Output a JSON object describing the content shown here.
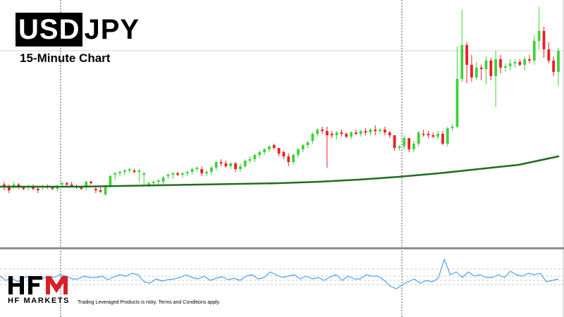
{
  "title": {
    "highlight": "USD",
    "rest": "JPY",
    "subtitle": "15-Minute Chart"
  },
  "brand": {
    "logo_letters": "HFM",
    "name": "HF MARKETS",
    "disclaimer": "Trading Leveraged Products is risky. Terms and Conditions apply."
  },
  "colors": {
    "up": "#3fd23a",
    "down": "#ee1c25",
    "moving_average": "#1e6e1e",
    "oscillator": "#4aa3f0",
    "logo_red": "#d61f26"
  },
  "chart_data": {
    "type": "candlestick",
    "symbol": "USDJPY",
    "timeframe": "15-Minute",
    "y_range": [
      0,
      450
    ],
    "axis_labels": "none shown",
    "grid": "none, with two vertical dashed session separators",
    "candles_ohlc": [
      [
        262,
        258,
        270,
        266
      ],
      [
        266,
        262,
        274,
        270
      ],
      [
        264,
        258,
        268,
        262
      ],
      [
        262,
        260,
        268,
        266
      ],
      [
        266,
        264,
        270,
        268
      ],
      [
        266,
        262,
        270,
        264
      ],
      [
        264,
        262,
        270,
        268
      ],
      [
        268,
        264,
        274,
        270
      ],
      [
        266,
        262,
        270,
        264
      ],
      [
        264,
        262,
        268,
        266
      ],
      [
        266,
        264,
        270,
        268
      ],
      [
        268,
        262,
        272,
        264
      ],
      [
        262,
        258,
        266,
        260
      ],
      [
        260,
        258,
        264,
        262
      ],
      [
        262,
        258,
        266,
        264
      ],
      [
        264,
        262,
        268,
        266
      ],
      [
        266,
        264,
        270,
        268
      ],
      [
        266,
        256,
        270,
        258
      ],
      [
        258,
        256,
        262,
        260
      ],
      [
        268,
        264,
        274,
        270
      ],
      [
        270,
        266,
        274,
        272
      ],
      [
        276,
        262,
        278,
        264
      ],
      [
        264,
        248,
        266,
        250
      ],
      [
        248,
        244,
        256,
        246
      ],
      [
        246,
        242,
        250,
        244
      ],
      [
        244,
        240,
        248,
        242
      ],
      [
        242,
        238,
        246,
        240
      ],
      [
        242,
        240,
        246,
        244
      ],
      [
        244,
        240,
        258,
        242
      ],
      [
        248,
        244,
        262,
        246
      ],
      [
        262,
        258,
        266,
        260
      ],
      [
        260,
        256,
        264,
        258
      ],
      [
        258,
        254,
        262,
        256
      ],
      [
        258,
        250,
        262,
        252
      ],
      [
        250,
        246,
        254,
        248
      ],
      [
        248,
        244,
        254,
        246
      ],
      [
        246,
        244,
        250,
        248
      ],
      [
        248,
        244,
        252,
        246
      ],
      [
        246,
        242,
        250,
        244
      ],
      [
        244,
        238,
        248,
        240
      ],
      [
        240,
        236,
        244,
        238
      ],
      [
        240,
        236,
        250,
        246
      ],
      [
        246,
        242,
        250,
        244
      ],
      [
        244,
        236,
        248,
        238
      ],
      [
        238,
        228,
        242,
        230
      ],
      [
        230,
        226,
        236,
        232
      ],
      [
        232,
        228,
        238,
        236
      ],
      [
        236,
        230,
        240,
        232
      ],
      [
        232,
        230,
        244,
        240
      ],
      [
        240,
        232,
        244,
        236
      ],
      [
        236,
        226,
        238,
        228
      ],
      [
        228,
        222,
        232,
        226
      ],
      [
        226,
        218,
        230,
        220
      ],
      [
        220,
        214,
        224,
        216
      ],
      [
        216,
        210,
        220,
        212
      ],
      [
        212,
        206,
        216,
        208
      ],
      [
        206,
        204,
        212,
        210
      ],
      [
        210,
        210,
        222,
        218
      ],
      [
        216,
        214,
        226,
        222
      ],
      [
        222,
        218,
        236,
        230
      ],
      [
        230,
        218,
        234,
        220
      ],
      [
        220,
        210,
        224,
        212
      ],
      [
        212,
        204,
        216,
        206
      ],
      [
        206,
        200,
        210,
        202
      ],
      [
        200,
        188,
        204,
        190
      ],
      [
        190,
        182,
        194,
        184
      ],
      [
        184,
        180,
        190,
        186
      ],
      [
        186,
        180,
        238,
        192
      ],
      [
        190,
        186,
        196,
        192
      ],
      [
        192,
        186,
        198,
        188
      ],
      [
        188,
        184,
        194,
        190
      ],
      [
        190,
        188,
        196,
        194
      ],
      [
        194,
        186,
        198,
        188
      ],
      [
        188,
        184,
        192,
        190
      ],
      [
        190,
        184,
        194,
        186
      ],
      [
        186,
        182,
        192,
        188
      ],
      [
        188,
        182,
        192,
        184
      ],
      [
        184,
        178,
        192,
        186
      ],
      [
        186,
        182,
        190,
        184
      ],
      [
        184,
        180,
        192,
        188
      ],
      [
        188,
        186,
        196,
        192
      ],
      [
        192,
        192,
        214,
        210
      ],
      [
        210,
        206,
        214,
        208
      ],
      [
        208,
        192,
        212,
        196
      ],
      [
        196,
        196,
        216,
        212
      ],
      [
        212,
        200,
        216,
        204
      ],
      [
        204,
        186,
        208,
        188
      ],
      [
        190,
        184,
        194,
        190
      ],
      [
        190,
        186,
        196,
        192
      ],
      [
        192,
        188,
        196,
        194
      ],
      [
        194,
        186,
        198,
        190
      ],
      [
        190,
        186,
        206,
        204
      ],
      [
        204,
        180,
        208,
        182
      ],
      [
        182,
        176,
        186,
        180
      ],
      [
        180,
        66,
        182,
        112
      ],
      [
        112,
        14,
        116,
        64
      ],
      [
        64,
        60,
        118,
        92
      ],
      [
        92,
        78,
        116,
        110
      ],
      [
        110,
        88,
        114,
        96
      ],
      [
        96,
        92,
        114,
        98
      ],
      [
        98,
        80,
        120,
        86
      ],
      [
        86,
        82,
        114,
        108
      ],
      [
        108,
        72,
        152,
        84
      ],
      [
        84,
        78,
        104,
        96
      ],
      [
        96,
        90,
        102,
        94
      ],
      [
        94,
        84,
        100,
        90
      ],
      [
        90,
        84,
        96,
        88
      ],
      [
        88,
        84,
        94,
        92
      ],
      [
        92,
        80,
        100,
        84
      ],
      [
        84,
        78,
        90,
        86
      ],
      [
        86,
        50,
        92,
        58
      ],
      [
        58,
        10,
        70,
        44
      ],
      [
        44,
        38,
        82,
        70
      ],
      [
        70,
        60,
        90,
        86
      ],
      [
        86,
        80,
        108,
        102
      ],
      [
        102,
        68,
        122,
        72
      ]
    ],
    "moving_average": [
      265,
      265,
      265,
      264,
      263,
      262,
      261,
      260,
      258,
      255,
      251,
      246,
      240,
      234,
      222
    ],
    "oscillator": [
      392,
      398,
      395,
      400,
      394,
      392,
      395,
      396,
      392,
      394,
      390,
      392,
      396,
      396,
      392,
      394,
      394,
      392,
      397,
      393,
      390,
      392,
      388,
      390,
      400,
      402,
      396,
      399,
      397,
      396,
      394,
      390,
      394,
      396,
      392,
      398,
      395,
      393,
      397,
      395,
      398,
      392,
      390,
      396,
      394,
      386,
      390,
      394,
      392,
      390,
      396,
      392,
      396,
      394,
      398,
      393,
      390,
      398,
      392,
      396,
      396,
      390,
      392,
      392,
      398,
      406,
      410,
      404,
      400,
      396,
      402,
      398,
      400,
      395,
      368,
      390,
      386,
      394,
      386,
      392,
      390,
      394,
      394,
      390,
      394,
      385,
      390,
      392,
      388,
      390,
      388,
      400,
      398,
      396
    ],
    "oscillator_levels": [
      382,
      392,
      398,
      404
    ]
  }
}
